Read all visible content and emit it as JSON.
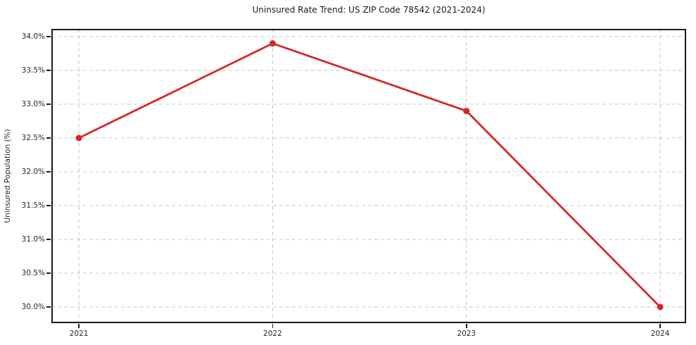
{
  "chart_data": {
    "type": "line",
    "title": "Uninsured Rate Trend: US ZIP Code 78542 (2021-2024)",
    "xlabel": "",
    "ylabel": "Uninsured Population (%)",
    "x": [
      2021,
      2022,
      2023,
      2024
    ],
    "x_tick_labels": [
      "2021",
      "2022",
      "2023",
      "2024"
    ],
    "series": [
      {
        "name": "Uninsured Population (%)",
        "values": [
          32.5,
          33.9,
          32.9,
          30.0
        ]
      }
    ],
    "y_ticks": [
      30.0,
      30.5,
      31.0,
      31.5,
      32.0,
      32.5,
      33.0,
      33.5,
      34.0
    ],
    "y_tick_labels": [
      "30.0%",
      "30.5%",
      "31.0%",
      "31.5%",
      "32.0%",
      "32.5%",
      "33.0%",
      "33.5%",
      "34.0%"
    ],
    "xlim": [
      2020.858,
      2024.134
    ],
    "ylim": [
      29.76,
      34.115
    ],
    "grid": true,
    "grid_style": "dashed",
    "legend": false,
    "styles": {
      "line_color": "#d62728",
      "marker_color": "#d62728",
      "grid_color": "#c9c9c9",
      "spine_color": "#1a1a1a",
      "text_color": "#262626",
      "background": "#ffffff"
    }
  }
}
